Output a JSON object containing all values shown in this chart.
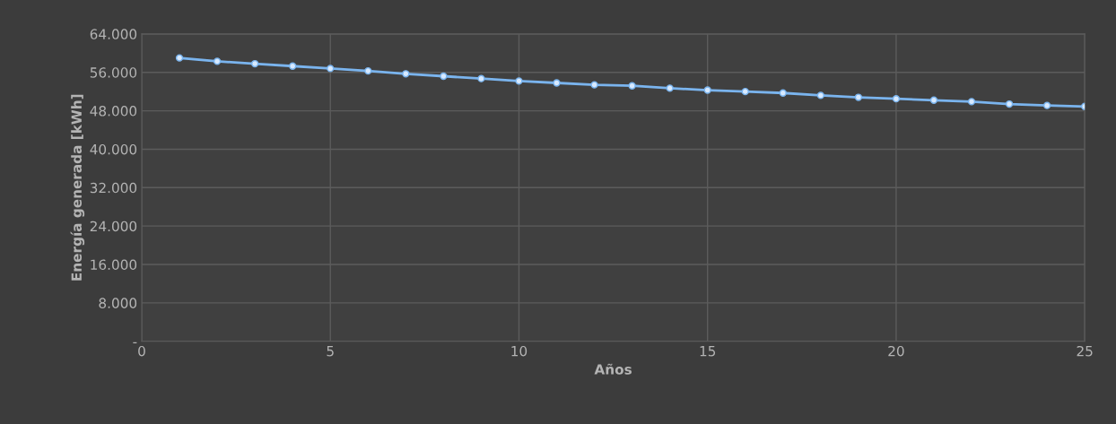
{
  "chart_data": {
    "type": "line",
    "xlabel": "Años",
    "ylabel": "Energía generada [kWh]",
    "x": [
      1,
      2,
      3,
      4,
      5,
      6,
      7,
      8,
      9,
      10,
      11,
      12,
      13,
      14,
      15,
      16,
      17,
      18,
      19,
      20,
      21,
      22,
      23,
      24,
      25
    ],
    "series": [
      {
        "color": "#7ab4ee",
        "values": [
          59000,
          58300,
          57800,
          57300,
          56800,
          56300,
          55700,
          55200,
          54700,
          54200,
          53800,
          53400,
          53200,
          52700,
          52300,
          52000,
          51700,
          51200,
          50800,
          50500,
          50200,
          49900,
          49400,
          49100,
          48900
        ]
      }
    ],
    "xlim": [
      0,
      25
    ],
    "xticks": [
      0,
      5,
      10,
      15,
      20,
      25
    ],
    "ylim": [
      0,
      64000
    ],
    "yticks": [
      {
        "value": 0,
        "label": "-"
      },
      {
        "value": 8000,
        "label": "8.000"
      },
      {
        "value": 16000,
        "label": "16.000"
      },
      {
        "value": 24000,
        "label": "24.000"
      },
      {
        "value": 32000,
        "label": "32.000"
      },
      {
        "value": 40000,
        "label": "40.000"
      },
      {
        "value": 48000,
        "label": "48.000"
      },
      {
        "value": 56000,
        "label": "56.000"
      },
      {
        "value": 64000,
        "label": "64.000"
      }
    ],
    "grid": true,
    "marker": "circle",
    "line_style": "solid"
  }
}
